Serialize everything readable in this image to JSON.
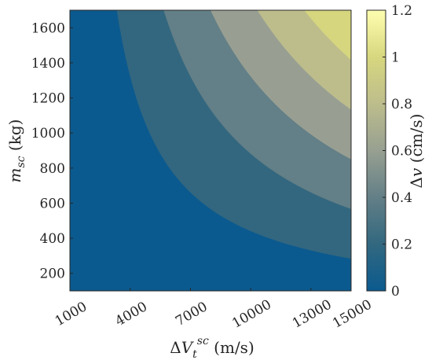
{
  "chart_data": {
    "type": "contour",
    "xlabel": "ΔV_t^sc (m/s)",
    "ylabel": "m_sc (kg)",
    "colorbar_label": "Δv (cm/s)",
    "x_ticks": [
      "1000",
      "4000",
      "7000",
      "10000",
      "13000",
      "15000"
    ],
    "x_tick_values": [
      1000,
      4000,
      7000,
      10000,
      13000,
      15000
    ],
    "y_ticks": [
      "200",
      "400",
      "600",
      "800",
      "1000",
      "1200",
      "1400",
      "1600"
    ],
    "y_tick_values": [
      200,
      400,
      600,
      800,
      1000,
      1200,
      1400,
      1600
    ],
    "xlim": [
      1000,
      15000
    ],
    "ylim": [
      100,
      1700
    ],
    "colorbar_ticks": [
      "0",
      "0.2",
      "0.4",
      "0.6",
      "0.8",
      "1",
      "1.2"
    ],
    "colorbar_tick_values": [
      0,
      0.2,
      0.4,
      0.6,
      0.8,
      1.0,
      1.2
    ],
    "colorbar_range": [
      0,
      1.2
    ],
    "model": "dv proportional to m_sc × (ΔV_t^sc − 1000)",
    "contour_levels": [
      0,
      0.2,
      0.4,
      0.6,
      0.8,
      1.0,
      1.2
    ],
    "level_colors": [
      "#0b5a8f",
      "#33677f",
      "#637f87",
      "#989f92",
      "#bdbd8c",
      "#d6d67f"
    ],
    "max_color": "#fefeb0",
    "colormap_stops": [
      "#0b5a8f",
      "#32687f",
      "#637f87",
      "#97a091",
      "#bdbd8c",
      "#d7d77f",
      "#fefeb0"
    ]
  },
  "x_label_parts": {
    "delta": "Δ",
    "V": "V",
    "sub": "t",
    "sup": "sc",
    "unit": " (m/s)"
  },
  "y_label_parts": {
    "m": "m",
    "sub": "sc",
    "unit": " (kg)"
  },
  "cb_label_parts": {
    "delta": "Δ",
    "v": "v",
    "unit": " (cm/s)"
  }
}
